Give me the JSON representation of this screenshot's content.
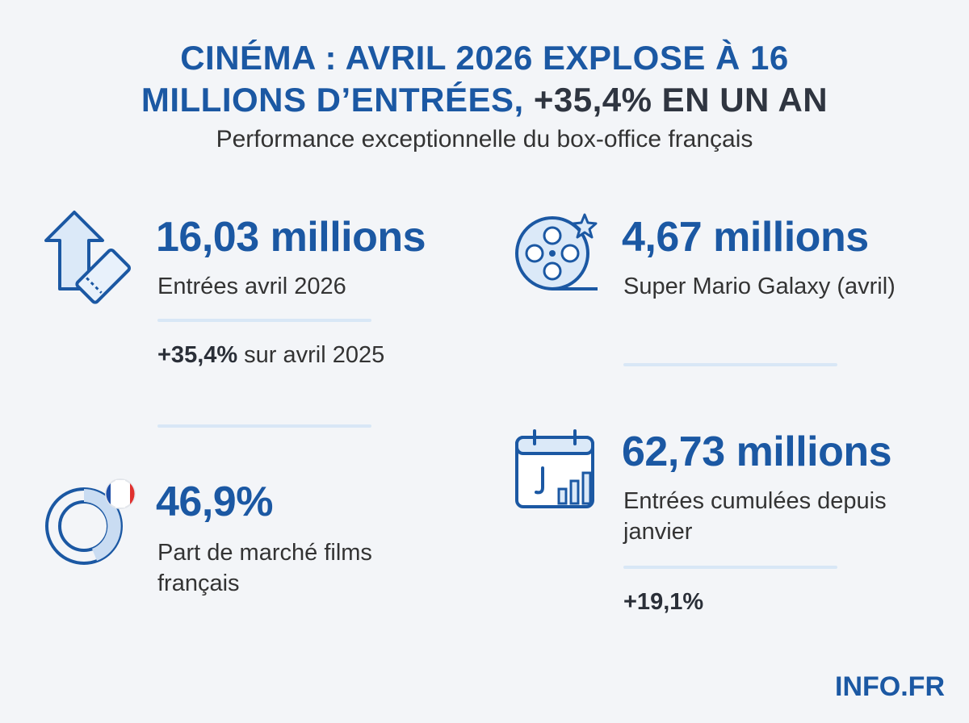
{
  "header": {
    "title_line1": "CINÉMA : AVRIL 2026 EXPLOSE À 16",
    "title_line2_main": "MILLIONS D’ENTRÉES,",
    "title_line2_highlight": "+35,4% EN UN AN",
    "subtitle": "Performance exceptionnelle du box-office français"
  },
  "stats": [
    {
      "value": "16,03 millions",
      "label": "Entrées avril 2026",
      "note_strong": "+35,4%",
      "note_text": "sur avril 2025"
    },
    {
      "value": "4,67 millions",
      "label": "Super Mario Galaxy (avril)"
    },
    {
      "value": "46,9%",
      "label": "Part de marché films français"
    },
    {
      "value": "62,73 millions",
      "label": "Entrées cumulées depuis janvier",
      "note_strong": "+19,1%"
    }
  ],
  "footer": {
    "brand": "INFO.FR"
  }
}
